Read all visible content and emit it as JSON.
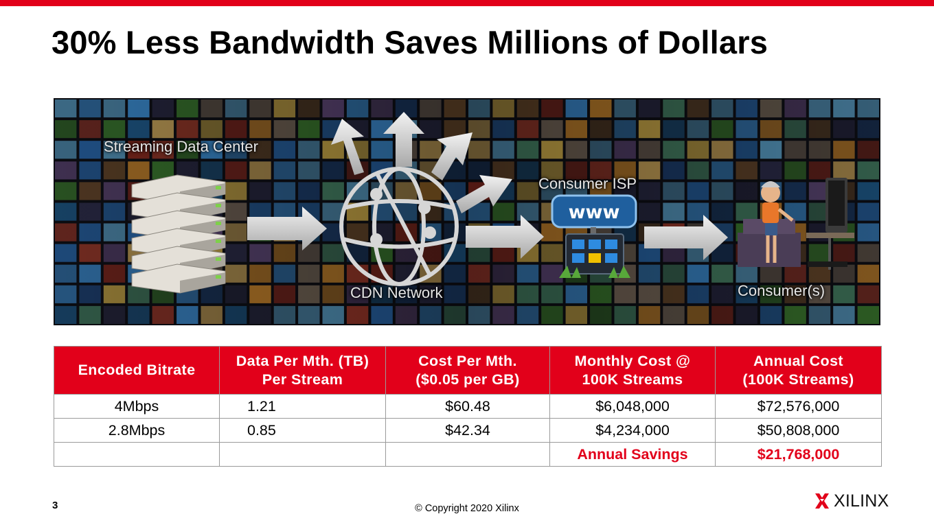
{
  "slide": {
    "title": "30% Less Bandwidth Saves Millions of Dollars",
    "page_number": "3",
    "copyright": "© Copyright 2020 Xilinx",
    "brand": "XILINX",
    "accent_color": "#e2001a"
  },
  "diagram": {
    "labels": {
      "data_center": "Streaming Data Center",
      "cdn": "CDN Network",
      "isp": "Consumer ISP",
      "consumers": "Consumer(s)",
      "www": "www"
    }
  },
  "table": {
    "headers": [
      [
        "Encoded Bitrate"
      ],
      [
        "Data Per Mth. (TB)",
        "Per Stream"
      ],
      [
        "Cost Per Mth.",
        "($0.05 per GB)"
      ],
      [
        "Monthly Cost @",
        "100K Streams"
      ],
      [
        "Annual Cost",
        "(100K Streams)"
      ]
    ],
    "rows": [
      [
        "4Mbps",
        "1.21",
        "$60.48",
        "$6,048,000",
        "$72,576,000"
      ],
      [
        "2.8Mbps",
        "0.85",
        "$42.34",
        "$4,234,000",
        "$50,808,000"
      ],
      [
        "",
        "",
        "",
        "Annual Savings",
        "$21,768,000"
      ]
    ]
  }
}
